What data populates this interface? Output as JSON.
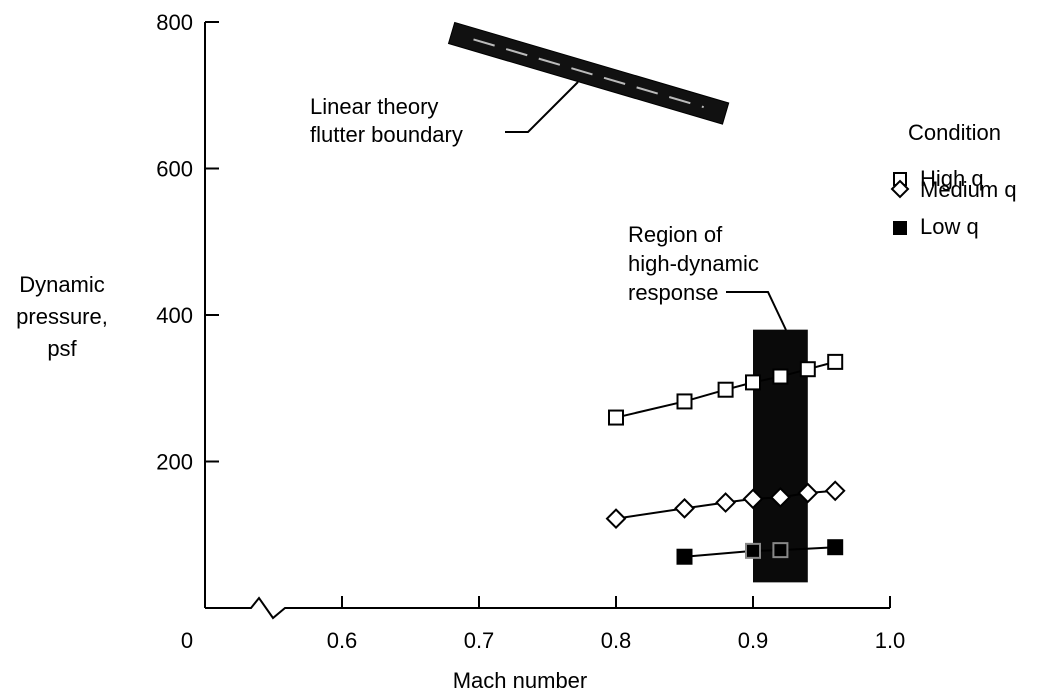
{
  "chart_data": {
    "type": "scatter",
    "title": "",
    "xlabel": "Mach number",
    "ylabel_lines": [
      "Dynamic",
      "pressure,",
      "psf"
    ],
    "xlim": [
      0.5,
      1.0
    ],
    "ylim": [
      0,
      800
    ],
    "x_axis_break": true,
    "x_ticks": [
      {
        "value": 0.5,
        "label": "0"
      },
      {
        "value": 0.6,
        "label": "0.6"
      },
      {
        "value": 0.7,
        "label": "0.7"
      },
      {
        "value": 0.8,
        "label": "0.8"
      },
      {
        "value": 0.9,
        "label": "0.9"
      },
      {
        "value": 1.0,
        "label": "1.0"
      }
    ],
    "y_ticks": [
      {
        "value": 200,
        "label": "200"
      },
      {
        "value": 400,
        "label": "400"
      },
      {
        "value": 600,
        "label": "600"
      },
      {
        "value": 800,
        "label": "800"
      }
    ],
    "legend": {
      "title": "Condition",
      "placement": "right"
    },
    "series": [
      {
        "name": "High q",
        "marker": "square-open",
        "x": [
          0.8,
          0.85,
          0.88,
          0.9,
          0.92,
          0.94,
          0.96
        ],
        "y": [
          260,
          282,
          298,
          308,
          316,
          326,
          336
        ]
      },
      {
        "name": "Medium q",
        "marker": "diamond-open",
        "x": [
          0.8,
          0.85,
          0.88,
          0.9,
          0.92,
          0.94,
          0.96
        ],
        "y": [
          122,
          136,
          144,
          149,
          151,
          157,
          160
        ]
      },
      {
        "name": "Low q",
        "marker": "square-filled",
        "x": [
          0.85,
          0.9,
          0.92,
          0.96
        ],
        "y": [
          70,
          78,
          79,
          83
        ]
      }
    ],
    "flutter_boundary": {
      "label_lines": [
        "Linear theory",
        "flutter boundary"
      ],
      "x": [
        0.68,
        0.88
      ],
      "y": [
        785,
        675
      ]
    },
    "response_region": {
      "label_lines": [
        "Region of",
        "high-dynamic",
        "response"
      ],
      "x": [
        0.9,
        0.94
      ],
      "y": [
        35,
        380
      ]
    }
  }
}
